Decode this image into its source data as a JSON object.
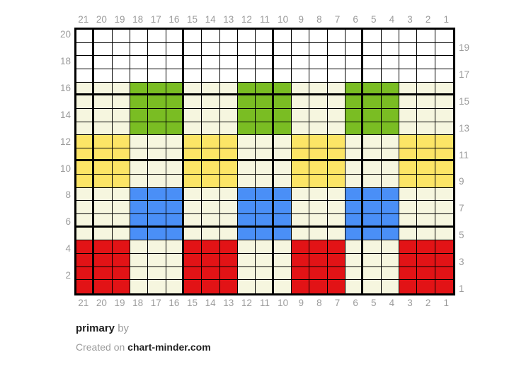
{
  "page": {
    "background": "#ffffff"
  },
  "footer": {
    "title": "primary",
    "byline": "by",
    "created_prefix": "Created on",
    "site": "chart-minder.com"
  },
  "axis": {
    "top": [
      "21",
      "20",
      "19",
      "18",
      "17",
      "16",
      "15",
      "14",
      "13",
      "12",
      "11",
      "10",
      "9",
      "8",
      "7",
      "6",
      "5",
      "4",
      "3",
      "2",
      "1"
    ],
    "bottom": [
      "21",
      "20",
      "19",
      "18",
      "17",
      "16",
      "15",
      "14",
      "13",
      "12",
      "11",
      "10",
      "9",
      "8",
      "7",
      "6",
      "5",
      "4",
      "3",
      "2",
      "1"
    ],
    "left": [
      "20",
      "",
      "18",
      "",
      "16",
      "",
      "14",
      "",
      "12",
      "",
      "10",
      "",
      "8",
      "",
      "6",
      "",
      "4",
      "",
      "2",
      ""
    ],
    "right": [
      "",
      "19",
      "",
      "17",
      "",
      "15",
      "",
      "13",
      "",
      "11",
      "",
      "9",
      "",
      "7",
      "",
      "5",
      "",
      "3",
      "",
      "1"
    ]
  },
  "colors": {
    "gridline": "#000000",
    "axis_label": "#9c9c9c",
    "footer_text_dark": "#202020",
    "footer_text_gray": "#9c9c9c"
  },
  "chart_data": {
    "type": "heatmap",
    "title": "primary",
    "grid_size": {
      "columns": 21,
      "rows": 20
    },
    "column_labels_right_to_left": [
      "1",
      "2",
      "3",
      "4",
      "5",
      "6",
      "7",
      "8",
      "9",
      "10",
      "11",
      "12",
      "13",
      "14",
      "15",
      "16",
      "17",
      "18",
      "19",
      "20",
      "21"
    ],
    "row_labels_bottom_to_top": [
      "1",
      "2",
      "3",
      "4",
      "5",
      "6",
      "7",
      "8",
      "9",
      "10",
      "11",
      "12",
      "13",
      "14",
      "15",
      "16",
      "17",
      "18",
      "19",
      "20"
    ],
    "bold_grid_interval": 5,
    "legend": {
      "W": "white",
      "C": "cream",
      "G": "green",
      "Y": "yellow",
      "B": "blue",
      "R": "red"
    },
    "palette": {
      "W": "#ffffff",
      "C": "#f6f6df",
      "G": "#7abd23",
      "Y": "#fce566",
      "B": "#4a8ff7",
      "R": "#e21316"
    },
    "rows": [
      {
        "row": 20,
        "cells": "WWWWWWWWWWWWWWWWWWWWW"
      },
      {
        "row": 19,
        "cells": "WWWWWWWWWWWWWWWWWWWWW"
      },
      {
        "row": 18,
        "cells": "WWWWWWWWWWWWWWWWWWWWW"
      },
      {
        "row": 17,
        "cells": "WWWWWWWWWWWWWWWWWWWWW"
      },
      {
        "row": 16,
        "cells": "CCCGGGCCCGGGCCCGGGCCC"
      },
      {
        "row": 15,
        "cells": "CCCGGGCCCGGGCCCGGGCCC"
      },
      {
        "row": 14,
        "cells": "CCCGGGCCCGGGCCCGGGCCC"
      },
      {
        "row": 13,
        "cells": "CCCGGGCCCGGGCCCGGGCCC"
      },
      {
        "row": 12,
        "cells": "YYYCCCYYYCCCYYYCCCYYY"
      },
      {
        "row": 11,
        "cells": "YYYCCCYYYCCCYYYCCCYYY"
      },
      {
        "row": 10,
        "cells": "YYYCCCYYYCCCYYYCCCYYY"
      },
      {
        "row": 9,
        "cells": "YYYCCCYYYCCCYYYCCCYYY"
      },
      {
        "row": 8,
        "cells": "CCCBBBCCCBBBCCCBBBCCC"
      },
      {
        "row": 7,
        "cells": "CCCBBBCCCBBBCCCBBBCCC"
      },
      {
        "row": 6,
        "cells": "CCCBBBCCCBBBCCCBBBCCC"
      },
      {
        "row": 5,
        "cells": "CCCBBBCCCBBBCCCBBBCCC"
      },
      {
        "row": 4,
        "cells": "RRRCCCRRRCCCRRRCCCRRR"
      },
      {
        "row": 3,
        "cells": "RRRCCCRRRCCCRRRCCCRRR"
      },
      {
        "row": 2,
        "cells": "RRRCCCRRRCCCRRRCCCRRR"
      },
      {
        "row": 1,
        "cells": "RRRCCCRRRCCCRRRCCCRRR"
      }
    ]
  }
}
